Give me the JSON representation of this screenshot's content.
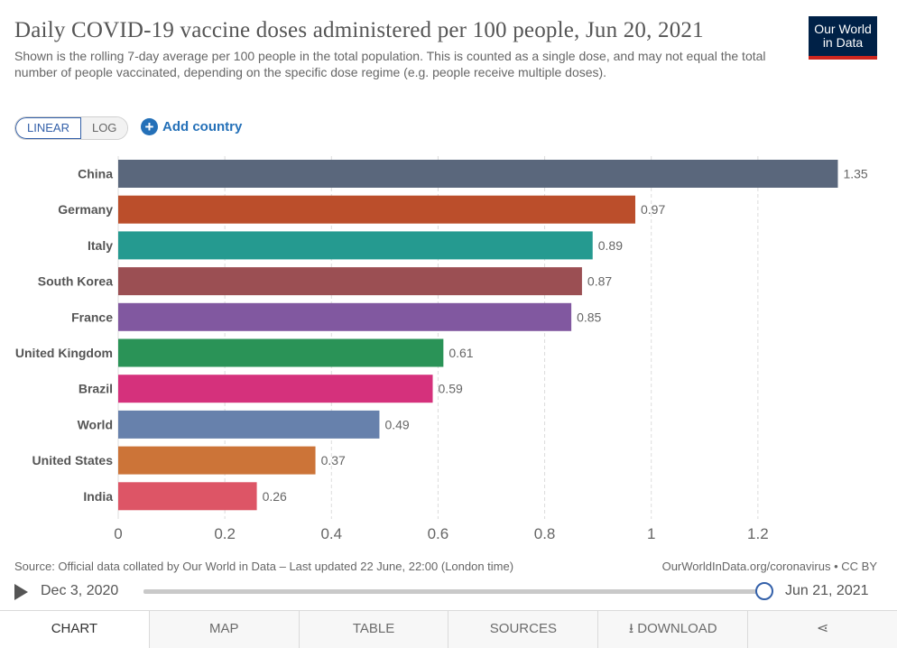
{
  "header": {
    "title": "Daily COVID-19 vaccine doses administered per 100 people, Jun 20, 2021",
    "subtitle": "Shown is the rolling 7-day average per 100 people in the total population. This is counted as a single dose, and may not equal the total number of people vaccinated, depending on the specific dose regime (e.g. people receive multiple doses).",
    "logo_line1": "Our World",
    "logo_line2": "in Data"
  },
  "controls": {
    "linear_label": "LINEAR",
    "log_label": "LOG",
    "add_country_label": "Add country"
  },
  "chart_data": {
    "type": "bar",
    "orientation": "horizontal",
    "title": "Daily COVID-19 vaccine doses administered per 100 people, Jun 20, 2021",
    "xlabel": "",
    "ylabel": "",
    "xlim": [
      0,
      1.4
    ],
    "xticks": [
      0,
      0.2,
      0.4,
      0.6,
      0.8,
      1,
      1.2
    ],
    "xtick_labels": [
      "0",
      "0.2",
      "0.4",
      "0.6",
      "0.8",
      "1",
      "1.2"
    ],
    "grid": true,
    "categories": [
      "China",
      "Germany",
      "Italy",
      "South Korea",
      "France",
      "United Kingdom",
      "Brazil",
      "World",
      "United States",
      "India"
    ],
    "values": [
      1.35,
      0.97,
      0.89,
      0.87,
      0.85,
      0.61,
      0.59,
      0.49,
      0.37,
      0.26
    ],
    "value_labels": [
      "1.35",
      "0.97",
      "0.89",
      "0.87",
      "0.85",
      "0.61",
      "0.59",
      "0.49",
      "0.37",
      "0.26"
    ],
    "colors": [
      "#5a677c",
      "#bb4e2b",
      "#259a90",
      "#9b4f53",
      "#8158a0",
      "#2a9357",
      "#d5317c",
      "#6781ac",
      "#cc7438",
      "#dd5566"
    ]
  },
  "footer": {
    "source": "Source: Official data collated by Our World in Data – Last updated 22 June, 22:00 (London time)",
    "source_right": "OurWorldInData.org/coronavirus • CC BY"
  },
  "timeline": {
    "start_label": "Dec 3, 2020",
    "end_label": "Jun 21, 2021",
    "position_fraction": 1.0
  },
  "tabs": {
    "chart": "CHART",
    "map": "MAP",
    "table": "TABLE",
    "sources": "SOURCES",
    "download": "DOWNLOAD"
  }
}
